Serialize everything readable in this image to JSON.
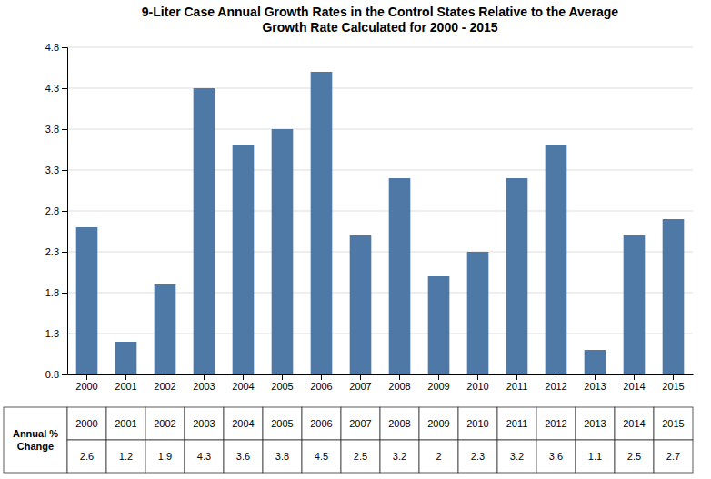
{
  "chart_data": {
    "type": "bar",
    "title": "9-Liter Case Annual Growth Rates in the Control States Relative to the Average\nGrowth Rate Calculated for 2000 - 2015",
    "categories": [
      "2000",
      "2001",
      "2002",
      "2003",
      "2004",
      "2005",
      "2006",
      "2007",
      "2008",
      "2009",
      "2010",
      "2011",
      "2012",
      "2013",
      "2014",
      "2015"
    ],
    "values": [
      2.6,
      1.2,
      1.9,
      4.3,
      3.6,
      3.8,
      4.5,
      2.5,
      3.2,
      2.0,
      2.3,
      3.2,
      3.6,
      1.1,
      2.5,
      2.7
    ],
    "ylim": [
      0.8,
      4.8
    ],
    "yticks": [
      0.8,
      1.3,
      1.8,
      2.3,
      2.8,
      3.3,
      3.8,
      4.3,
      4.8
    ],
    "grid": true,
    "annotations": [
      "Annual %\nChange"
    ]
  }
}
